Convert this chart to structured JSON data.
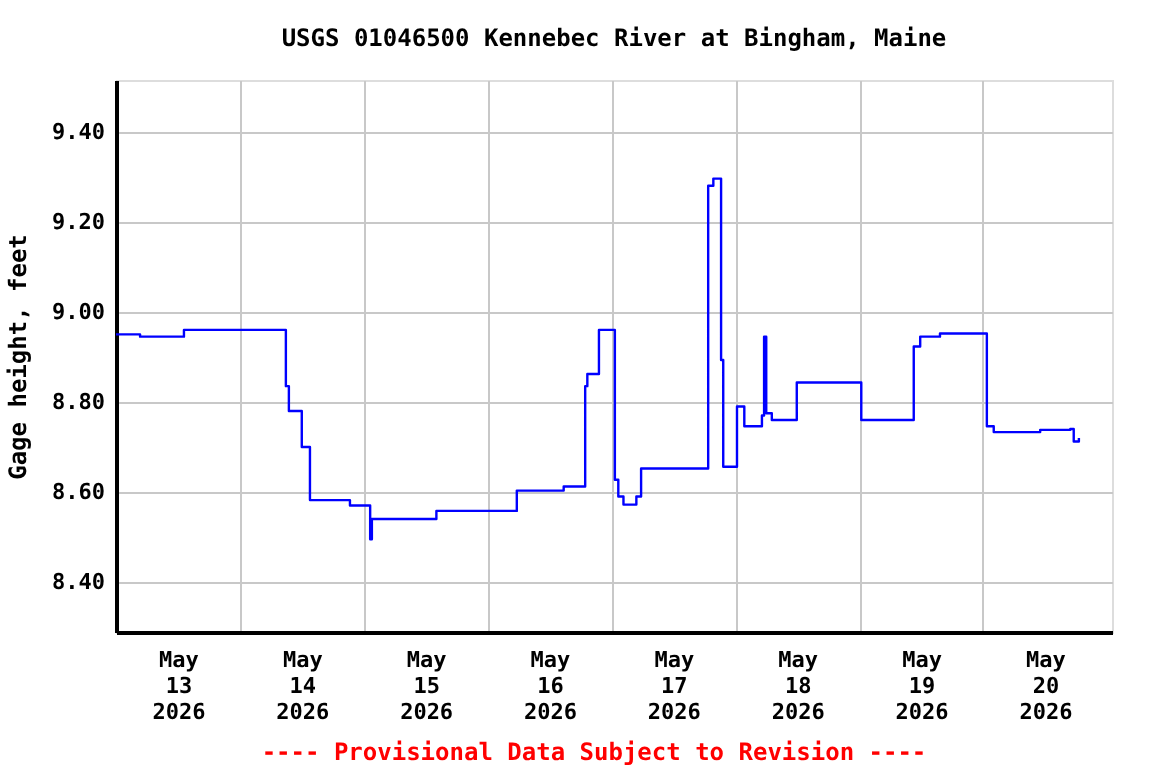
{
  "chart_data": {
    "type": "step",
    "title": "USGS 01046500 Kennebec River at Bingham, Maine",
    "ylabel": "Gage height, feet",
    "annotations": [
      "---- Provisional Data Subject to Revision ----"
    ],
    "x": [
      "2026-05-12T12:00",
      "2026-05-12T16:40",
      "2026-05-13T01:10",
      "2026-05-13T20:55",
      "2026-05-13T21:30",
      "2026-05-14T00:00",
      "2026-05-14T01:35",
      "2026-05-14T09:20",
      "2026-05-14T13:15",
      "2026-05-14T13:35",
      "2026-05-15T02:05",
      "2026-05-15T17:40",
      "2026-05-16T02:45",
      "2026-05-16T06:55",
      "2026-05-16T07:20",
      "2026-05-16T09:35",
      "2026-05-16T12:40",
      "2026-05-16T13:20",
      "2026-05-16T14:20",
      "2026-05-16T16:50",
      "2026-05-16T17:45",
      "2026-05-17T06:45",
      "2026-05-17T07:45",
      "2026-05-17T09:15",
      "2026-05-17T09:40",
      "2026-05-17T12:20",
      "2026-05-17T13:45",
      "2026-05-17T17:10",
      "2026-05-17T17:35",
      "2026-05-17T18:00",
      "2026-05-17T19:05",
      "2026-05-17T23:55",
      "2026-05-18T12:25",
      "2026-05-18T22:35",
      "2026-05-18T23:50",
      "2026-05-19T03:40",
      "2026-05-19T12:45",
      "2026-05-19T14:05",
      "2026-05-19T23:05",
      "2026-05-20T04:55",
      "2026-05-20T05:35",
      "2026-05-20T06:35"
    ],
    "series": [
      {
        "color": "#0000ff",
        "values": [
          8.95,
          8.945,
          8.96,
          8.835,
          8.78,
          8.7,
          8.582,
          8.57,
          8.495,
          8.54,
          8.558,
          8.603,
          8.612,
          8.835,
          8.862,
          8.96,
          8.627,
          8.59,
          8.572,
          8.59,
          8.652,
          9.28,
          9.296,
          8.893,
          8.656,
          8.79,
          8.746,
          8.77,
          8.945,
          8.775,
          8.76,
          8.843,
          8.76,
          8.923,
          8.945,
          8.952,
          8.746,
          8.733,
          8.738,
          8.74,
          8.712,
          8.72
        ]
      }
    ],
    "xlim": [
      "2026-05-12T12:00",
      "2026-05-20T13:00"
    ],
    "xticks": [
      {
        "value": "2026-05-13T00:00",
        "label": "May\n13\n2026"
      },
      {
        "value": "2026-05-13T12:00",
        "label": null
      },
      {
        "value": "2026-05-14T00:00",
        "label": "May\n14\n2026"
      },
      {
        "value": "2026-05-14T12:00",
        "label": null
      },
      {
        "value": "2026-05-15T00:00",
        "label": "May\n15\n2026"
      },
      {
        "value": "2026-05-15T12:00",
        "label": null
      },
      {
        "value": "2026-05-16T00:00",
        "label": "May\n16\n2026"
      },
      {
        "value": "2026-05-16T12:00",
        "label": null
      },
      {
        "value": "2026-05-17T00:00",
        "label": "May\n17\n2026"
      },
      {
        "value": "2026-05-17T12:00",
        "label": null
      },
      {
        "value": "2026-05-18T00:00",
        "label": "May\n18\n2026"
      },
      {
        "value": "2026-05-18T12:00",
        "label": null
      },
      {
        "value": "2026-05-19T00:00",
        "label": "May\n19\n2026"
      },
      {
        "value": "2026-05-19T12:00",
        "label": null
      },
      {
        "value": "2026-05-20T00:00",
        "label": "May\n20\n2026"
      }
    ],
    "ylim": [
      8.289,
      9.515
    ],
    "yticks": [
      {
        "value": 8.4,
        "label": "8.40"
      },
      {
        "value": 8.6,
        "label": "8.60"
      },
      {
        "value": 8.8,
        "label": "8.80"
      },
      {
        "value": 9.0,
        "label": "9.00"
      },
      {
        "value": 9.2,
        "label": "9.20"
      },
      {
        "value": 9.4,
        "label": "9.40"
      }
    ],
    "grid": true
  }
}
